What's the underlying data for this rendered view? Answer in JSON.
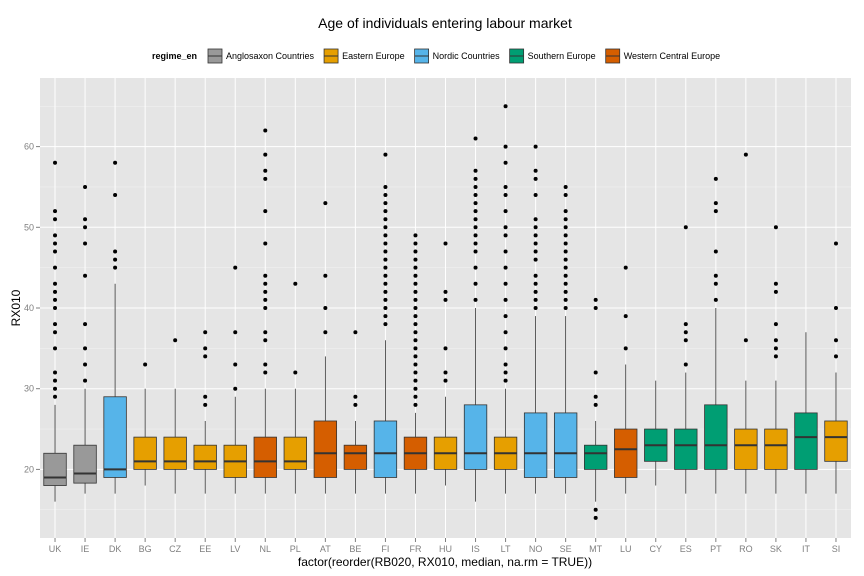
{
  "chart_data": {
    "type": "box",
    "title": "Age of individuals entering labour market",
    "xlabel": "factor(reorder(RB020, RX010, median, na.rm = TRUE))",
    "ylabel": "RX010",
    "ylim": [
      11.5,
      68.5
    ],
    "yticks": [
      20,
      30,
      40,
      50,
      60
    ],
    "grid": true,
    "legend": {
      "title": "regime_en",
      "position": "top",
      "entries": [
        {
          "name": "Anglosaxon Countries",
          "color": "#999999"
        },
        {
          "name": "Eastern Europe",
          "color": "#E69F00"
        },
        {
          "name": "Nordic Countries",
          "color": "#56B4E9"
        },
        {
          "name": "Southern Europe",
          "color": "#009E73"
        },
        {
          "name": "Western Central Europe",
          "color": "#D55E00"
        }
      ]
    },
    "categories": [
      "UK",
      "IE",
      "DK",
      "BG",
      "CZ",
      "EE",
      "LV",
      "NL",
      "PL",
      "AT",
      "BE",
      "FI",
      "FR",
      "HU",
      "IS",
      "LT",
      "NO",
      "SE",
      "MT",
      "LU",
      "CY",
      "ES",
      "PT",
      "RO",
      "SK",
      "IT",
      "SI"
    ],
    "boxes": [
      {
        "cat": "UK",
        "regime": "Anglosaxon Countries",
        "whisker_low": 16,
        "q1": 18,
        "median": 19,
        "q3": 22,
        "whisker_high": 28,
        "outliers": [
          29,
          30,
          31,
          32,
          35,
          37,
          38,
          40,
          41,
          42,
          43,
          45,
          47,
          48,
          49,
          51,
          52,
          58
        ]
      },
      {
        "cat": "IE",
        "regime": "Anglosaxon Countries",
        "whisker_low": 17,
        "q1": 18.3,
        "median": 19.5,
        "q3": 23,
        "whisker_high": 30,
        "outliers": [
          31,
          33,
          35,
          38,
          44,
          48,
          50,
          51,
          55
        ]
      },
      {
        "cat": "DK",
        "regime": "Nordic Countries",
        "whisker_low": 17,
        "q1": 19,
        "median": 20,
        "q3": 29,
        "whisker_high": 43,
        "outliers": [
          45,
          46,
          47,
          54,
          58
        ]
      },
      {
        "cat": "BG",
        "regime": "Eastern Europe",
        "whisker_low": 18,
        "q1": 20,
        "median": 21,
        "q3": 24,
        "whisker_high": 30,
        "outliers": [
          33
        ]
      },
      {
        "cat": "CZ",
        "regime": "Eastern Europe",
        "whisker_low": 17,
        "q1": 20,
        "median": 21,
        "q3": 24,
        "whisker_high": 30,
        "outliers": [
          36
        ]
      },
      {
        "cat": "EE",
        "regime": "Eastern Europe",
        "whisker_low": 17,
        "q1": 20,
        "median": 21,
        "q3": 23,
        "whisker_high": 26,
        "outliers": [
          28,
          29,
          34,
          35,
          37
        ]
      },
      {
        "cat": "LV",
        "regime": "Eastern Europe",
        "whisker_low": 17,
        "q1": 19,
        "median": 21,
        "q3": 23,
        "whisker_high": 29,
        "outliers": [
          30,
          33,
          37,
          45
        ]
      },
      {
        "cat": "NL",
        "regime": "Western Central Europe",
        "whisker_low": 17,
        "q1": 19,
        "median": 21,
        "q3": 24,
        "whisker_high": 30,
        "outliers": [
          32,
          33,
          36,
          37,
          40,
          41,
          42,
          43,
          44,
          48,
          52,
          56,
          57,
          59,
          62
        ]
      },
      {
        "cat": "PL",
        "regime": "Eastern Europe",
        "whisker_low": 17,
        "q1": 20,
        "median": 21,
        "q3": 24,
        "whisker_high": 30,
        "outliers": [
          32,
          43
        ]
      },
      {
        "cat": "AT",
        "regime": "Western Central Europe",
        "whisker_low": 17,
        "q1": 19,
        "median": 22,
        "q3": 26,
        "whisker_high": 34,
        "outliers": [
          37,
          40,
          44,
          53
        ]
      },
      {
        "cat": "BE",
        "regime": "Western Central Europe",
        "whisker_low": 17,
        "q1": 20,
        "median": 22,
        "q3": 23,
        "whisker_high": 26,
        "outliers": [
          28,
          29,
          37
        ]
      },
      {
        "cat": "FI",
        "regime": "Nordic Countries",
        "whisker_low": 17,
        "q1": 19,
        "median": 22,
        "q3": 26,
        "whisker_high": 36,
        "outliers": [
          38,
          39,
          40,
          41,
          42,
          43,
          44,
          45,
          46,
          47,
          48,
          49,
          50,
          51,
          52,
          53,
          54,
          55,
          59
        ]
      },
      {
        "cat": "FR",
        "regime": "Western Central Europe",
        "whisker_low": 17,
        "q1": 20,
        "median": 22,
        "q3": 24,
        "whisker_high": 27,
        "outliers": [
          28,
          29,
          30,
          31,
          32,
          33,
          34,
          35,
          36,
          37,
          38,
          39,
          40,
          41,
          42,
          43,
          44,
          45,
          46,
          47,
          48,
          49
        ]
      },
      {
        "cat": "HU",
        "regime": "Eastern Europe",
        "whisker_low": 18,
        "q1": 20,
        "median": 22,
        "q3": 24,
        "whisker_high": 29,
        "outliers": [
          31,
          32,
          35,
          41,
          42,
          48
        ]
      },
      {
        "cat": "IS",
        "regime": "Nordic Countries",
        "whisker_low": 16,
        "q1": 20,
        "median": 22,
        "q3": 28,
        "whisker_high": 40,
        "outliers": [
          41,
          43,
          45,
          47,
          48,
          49,
          50,
          51,
          52,
          53,
          54,
          55,
          56,
          57,
          61
        ]
      },
      {
        "cat": "LT",
        "regime": "Eastern Europe",
        "whisker_low": 17,
        "q1": 20,
        "median": 22,
        "q3": 24,
        "whisker_high": 30,
        "outliers": [
          31,
          32,
          33,
          35,
          37,
          39,
          41,
          43,
          45,
          47,
          49,
          50,
          52,
          54,
          55,
          58,
          60,
          65
        ]
      },
      {
        "cat": "NO",
        "regime": "Nordic Countries",
        "whisker_low": 17,
        "q1": 19,
        "median": 22,
        "q3": 27,
        "whisker_high": 39,
        "outliers": [
          40,
          41,
          42,
          43,
          44,
          46,
          47,
          48,
          49,
          50,
          51,
          54,
          56,
          57,
          60
        ]
      },
      {
        "cat": "SE",
        "regime": "Nordic Countries",
        "whisker_low": 17,
        "q1": 19,
        "median": 22,
        "q3": 27,
        "whisker_high": 39,
        "outliers": [
          40,
          41,
          42,
          43,
          44,
          45,
          46,
          47,
          48,
          49,
          50,
          51,
          52,
          54,
          55
        ]
      },
      {
        "cat": "MT",
        "regime": "Southern Europe",
        "whisker_low": 16,
        "q1": 20,
        "median": 22,
        "q3": 23,
        "whisker_high": 26,
        "outliers": [
          14,
          15,
          28,
          29,
          32,
          40,
          41
        ]
      },
      {
        "cat": "LU",
        "regime": "Western Central Europe",
        "whisker_low": 17,
        "q1": 19,
        "median": 22.5,
        "q3": 25,
        "whisker_high": 33,
        "outliers": [
          35,
          39,
          45
        ]
      },
      {
        "cat": "CY",
        "regime": "Southern Europe",
        "whisker_low": 18,
        "q1": 21,
        "median": 23,
        "q3": 25,
        "whisker_high": 31,
        "outliers": []
      },
      {
        "cat": "ES",
        "regime": "Southern Europe",
        "whisker_low": 17,
        "q1": 20,
        "median": 23,
        "q3": 25,
        "whisker_high": 32,
        "outliers": [
          33,
          36,
          37,
          38,
          50
        ]
      },
      {
        "cat": "PT",
        "regime": "Southern Europe",
        "whisker_low": 17,
        "q1": 20,
        "median": 23,
        "q3": 28,
        "whisker_high": 40,
        "outliers": [
          41,
          43,
          44,
          47,
          52,
          53,
          56
        ]
      },
      {
        "cat": "RO",
        "regime": "Eastern Europe",
        "whisker_low": 17,
        "q1": 20,
        "median": 23,
        "q3": 25,
        "whisker_high": 31,
        "outliers": [
          36,
          59
        ]
      },
      {
        "cat": "SK",
        "regime": "Eastern Europe",
        "whisker_low": 17,
        "q1": 20,
        "median": 23,
        "q3": 25,
        "whisker_high": 31,
        "outliers": [
          34,
          35,
          36,
          38,
          42,
          43,
          50
        ]
      },
      {
        "cat": "IT",
        "regime": "Southern Europe",
        "whisker_low": 17,
        "q1": 20,
        "median": 24,
        "q3": 27,
        "whisker_high": 37,
        "outliers": []
      },
      {
        "cat": "SI",
        "regime": "Eastern Europe",
        "whisker_low": 17,
        "q1": 21,
        "median": 24,
        "q3": 26,
        "whisker_high": 32,
        "outliers": [
          34,
          36,
          40,
          48
        ]
      }
    ]
  }
}
